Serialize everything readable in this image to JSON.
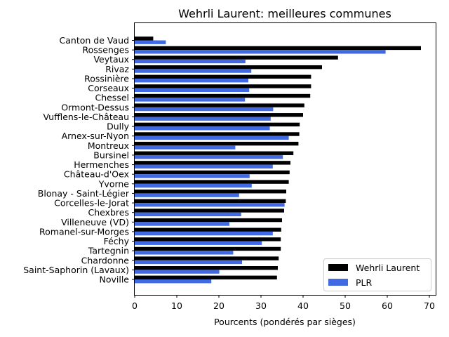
{
  "chart_data": {
    "type": "bar",
    "orientation": "horizontal",
    "title": "Wehrli Laurent: meilleures communes",
    "xlabel": "Pourcents (pondérés par sièges)",
    "ylabel": "",
    "xlim": [
      0,
      71.5
    ],
    "xticks": [
      0,
      10,
      20,
      30,
      40,
      50,
      60,
      70
    ],
    "grid": false,
    "legend_position": "bottom-right",
    "categories": [
      "Canton de Vaud",
      "Rossenges",
      "Veytaux",
      "Rivaz",
      "Rossinière",
      "Corseaux",
      "Chessel",
      "Ormont-Dessus",
      "Vufflens-le-Château",
      "Dully",
      "Arnex-sur-Nyon",
      "Montreux",
      "Bursinel",
      "Hermenches",
      "Château-d'Oex",
      "Yvorne",
      "Blonay - Saint-Légier",
      "Corcelles-le-Jorat",
      "Chexbres",
      "Villeneuve (VD)",
      "Romanel-sur-Morges",
      "Féchy",
      "Tartegnin",
      "Chardonne",
      "Saint-Saphorin (Lavaux)",
      "Noville"
    ],
    "series": [
      {
        "name": "Wehrli Laurent",
        "color": "#000000",
        "values": [
          4.4,
          68.0,
          48.3,
          44.5,
          41.9,
          41.9,
          41.7,
          40.3,
          40.0,
          39.2,
          39.1,
          38.9,
          37.7,
          37.0,
          36.8,
          36.6,
          36.0,
          35.9,
          35.5,
          35.0,
          34.8,
          34.7,
          34.7,
          34.2,
          34.0,
          33.8
        ]
      },
      {
        "name": "PLR",
        "color": "#4169e1",
        "values": [
          7.4,
          59.6,
          26.3,
          27.7,
          27.0,
          27.2,
          26.2,
          32.9,
          32.3,
          32.1,
          36.6,
          23.9,
          35.2,
          32.8,
          27.3,
          27.8,
          24.8,
          35.6,
          25.3,
          22.5,
          32.8,
          30.2,
          23.4,
          25.5,
          20.1,
          18.2
        ]
      }
    ]
  }
}
